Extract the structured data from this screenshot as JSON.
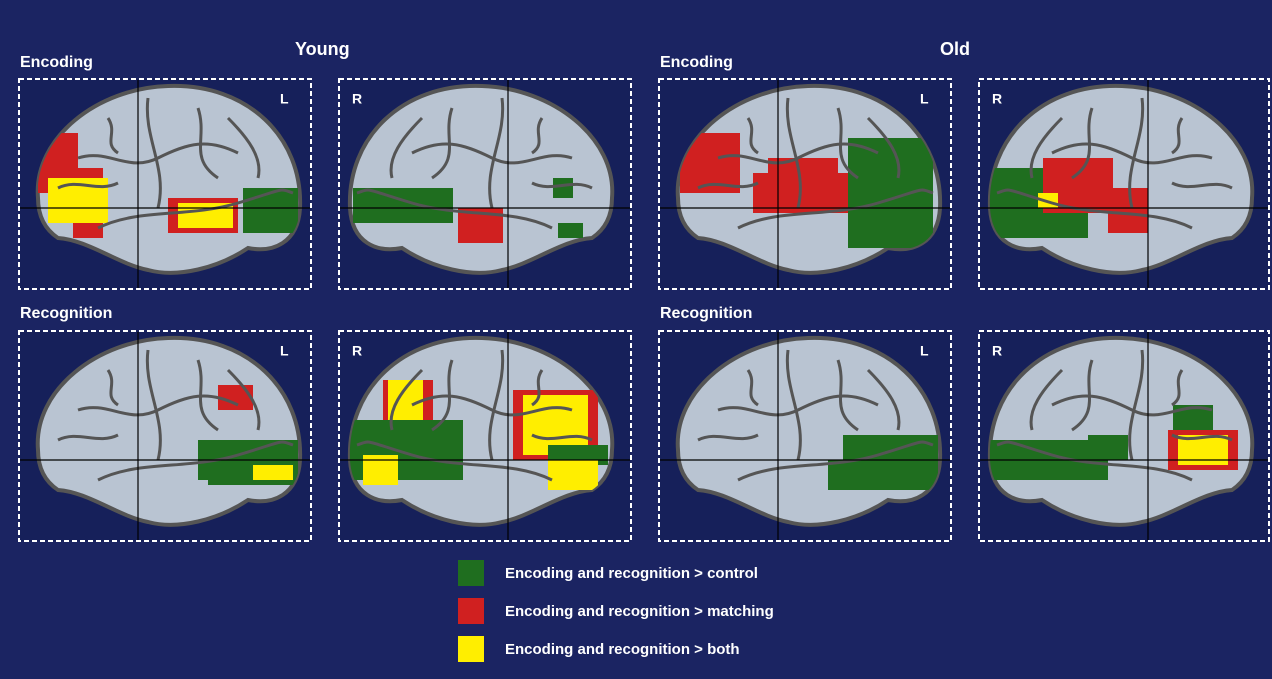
{
  "groups": [
    {
      "title": "Young",
      "rows": [
        {
          "label": "Encoding",
          "panels": [
            "L",
            "R"
          ]
        },
        {
          "label": "Recognition",
          "panels": [
            "L",
            "R"
          ]
        }
      ]
    },
    {
      "title": "Old",
      "rows": [
        {
          "label": "Encoding",
          "panels": [
            "L",
            "R"
          ]
        },
        {
          "label": "Recognition",
          "panels": [
            "L",
            "R"
          ]
        }
      ]
    }
  ],
  "legend": [
    {
      "label": "Encoding and recognition > control",
      "color": "#1f6e1f"
    },
    {
      "label": "Encoding and recognition > matching",
      "color": "#d02020"
    },
    {
      "label": "Encoding and recognition > both",
      "color": "#ffee00"
    }
  ]
}
